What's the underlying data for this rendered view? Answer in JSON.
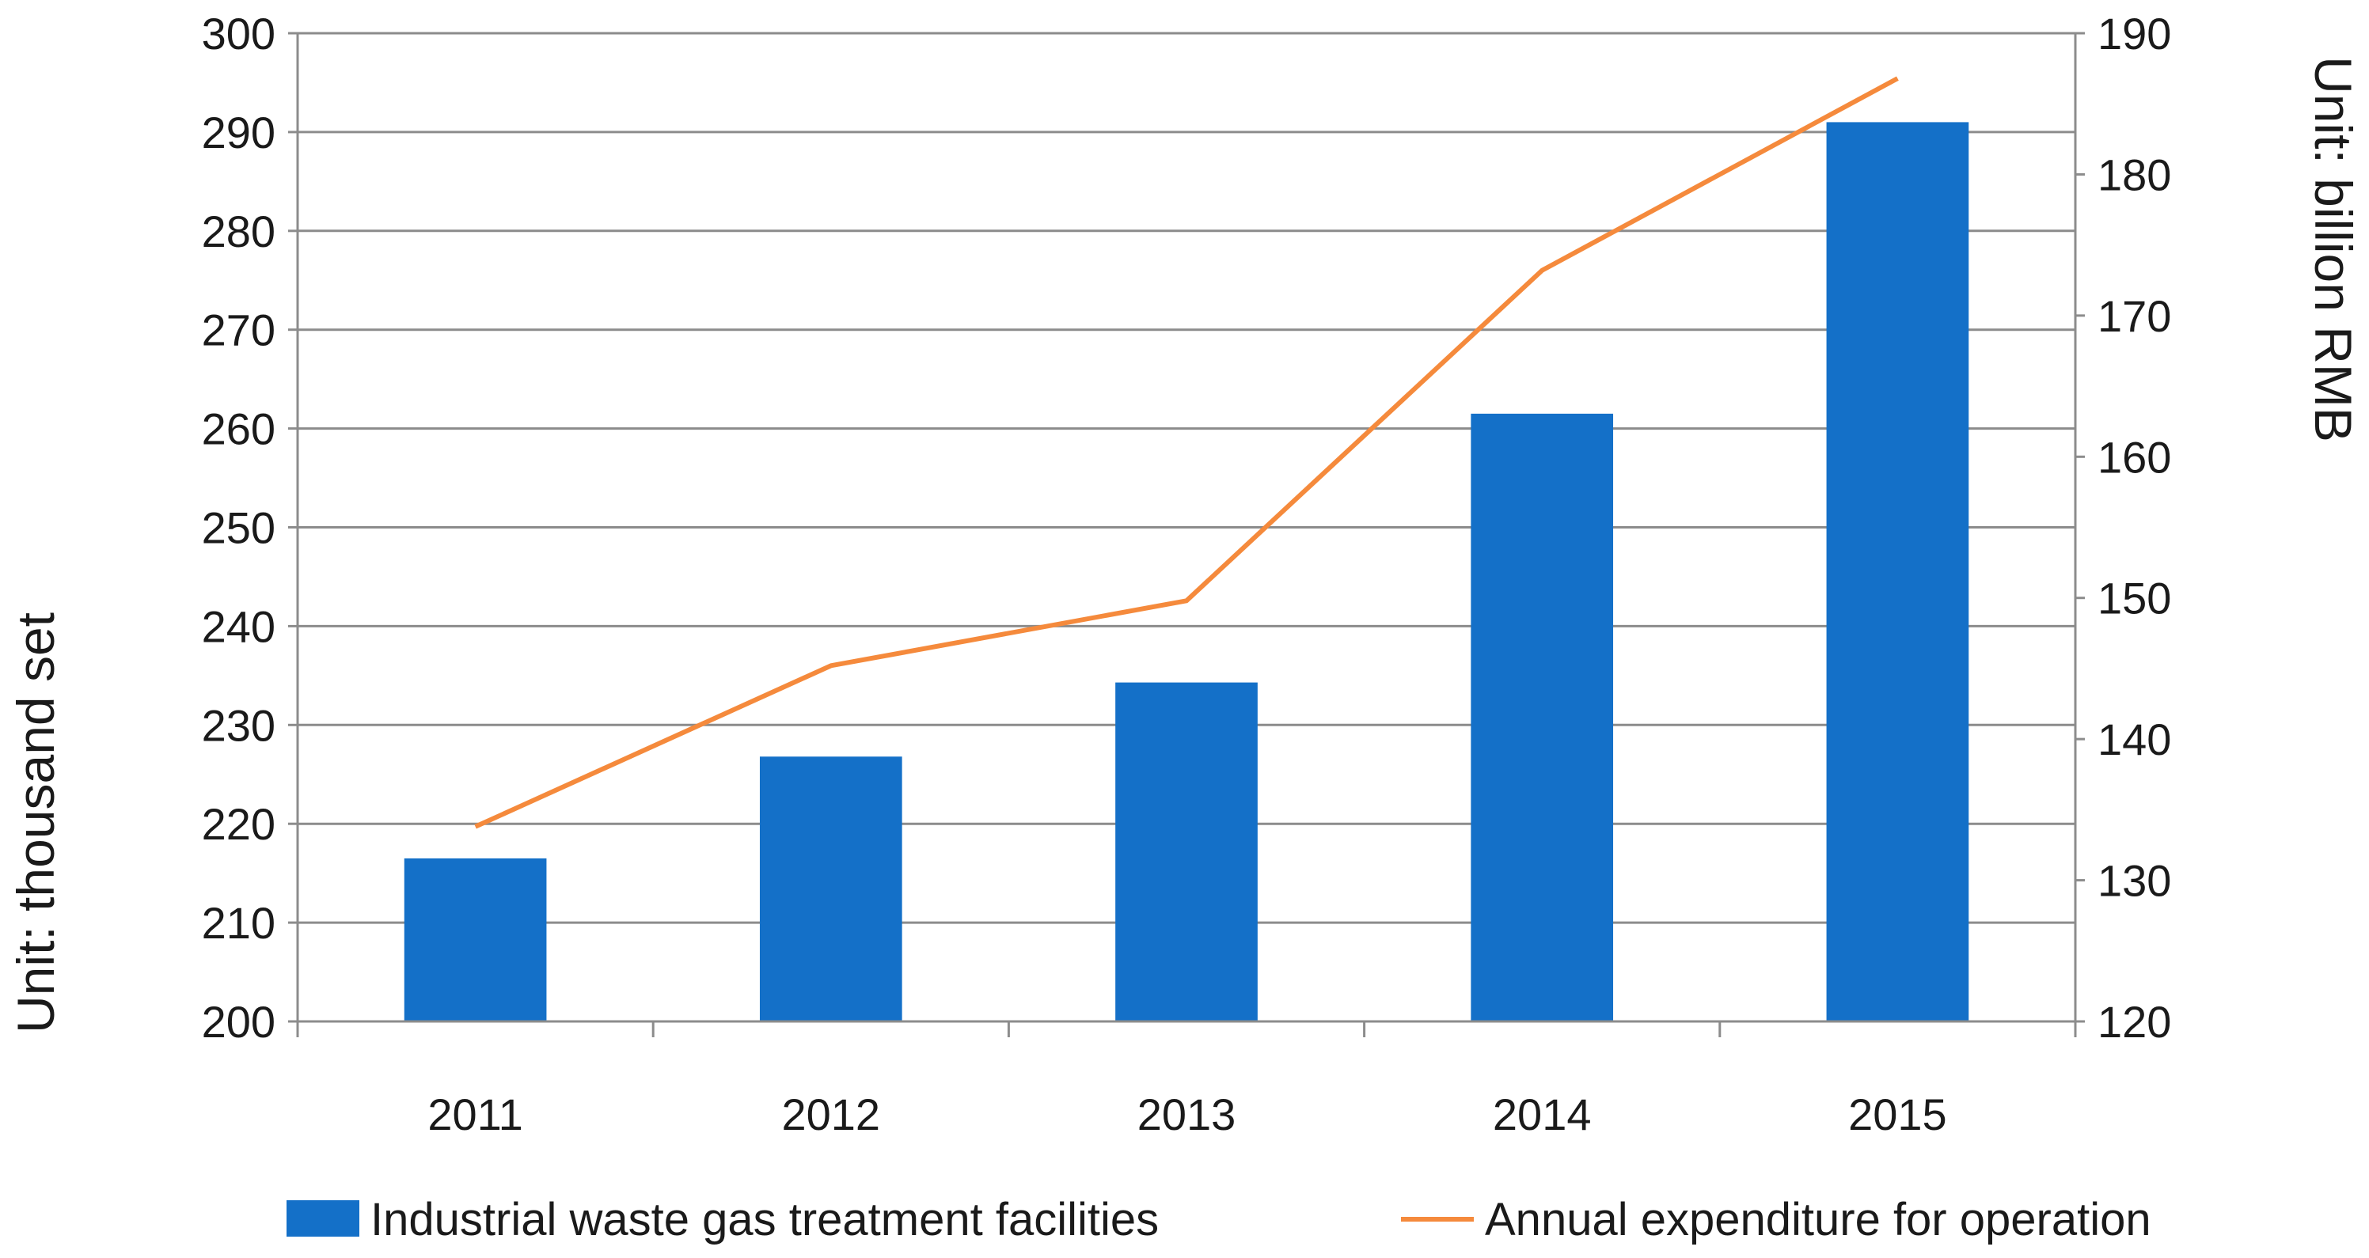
{
  "chart_data": {
    "type": "bar",
    "categories": [
      "2011",
      "2012",
      "2013",
      "2014",
      "2015"
    ],
    "series": [
      {
        "name": "Industrial waste gas treatment facilities",
        "type": "bar",
        "axis": "left",
        "color": "#1470C8",
        "values": [
          216.5,
          226.8,
          234.3,
          261.5,
          291.0
        ]
      },
      {
        "name": "Annual expenditure for operation",
        "type": "line",
        "axis": "right",
        "color": "#F58A3C",
        "values": [
          133.8,
          145.2,
          149.8,
          173.2,
          186.8
        ]
      }
    ],
    "y_left": {
      "label": "Unit: thousand set",
      "ylim": [
        200,
        300
      ],
      "ticks": [
        "200",
        "210",
        "220",
        "230",
        "240",
        "250",
        "260",
        "270",
        "280",
        "290",
        "300"
      ]
    },
    "y_right": {
      "label": "Unit: billion RMB",
      "ylim": [
        120,
        190
      ],
      "ticks": [
        "120",
        "130",
        "140",
        "150",
        "160",
        "170",
        "180",
        "190"
      ]
    },
    "grid": true,
    "legend_position": "bottom"
  }
}
